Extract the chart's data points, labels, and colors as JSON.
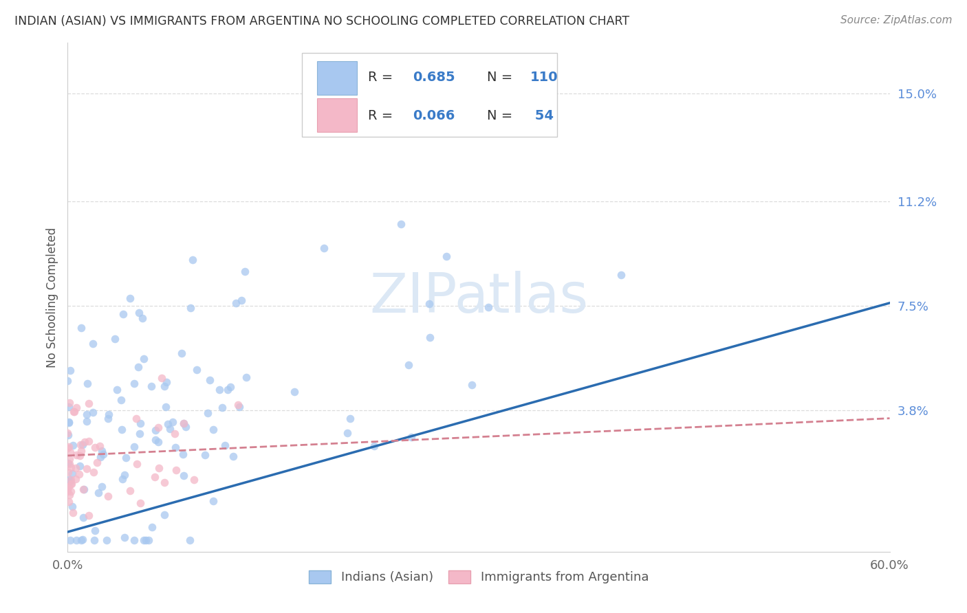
{
  "title": "INDIAN (ASIAN) VS IMMIGRANTS FROM ARGENTINA NO SCHOOLING COMPLETED CORRELATION CHART",
  "source": "Source: ZipAtlas.com",
  "ylabel": "No Schooling Completed",
  "xlim": [
    0.0,
    0.6
  ],
  "ylim": [
    -0.012,
    0.168
  ],
  "background_color": "#ffffff",
  "grid_color": "#dddddd",
  "color_indian": "#a8c8f0",
  "color_argentina": "#f4b8c8",
  "line_color_indian": "#2b6cb0",
  "line_color_argentina": "#d48090",
  "ytick_vals": [
    0.038,
    0.075,
    0.112,
    0.15
  ],
  "ytick_labels": [
    "3.8%",
    "7.5%",
    "11.2%",
    "15.0%"
  ],
  "watermark_color": "#dce8f5"
}
